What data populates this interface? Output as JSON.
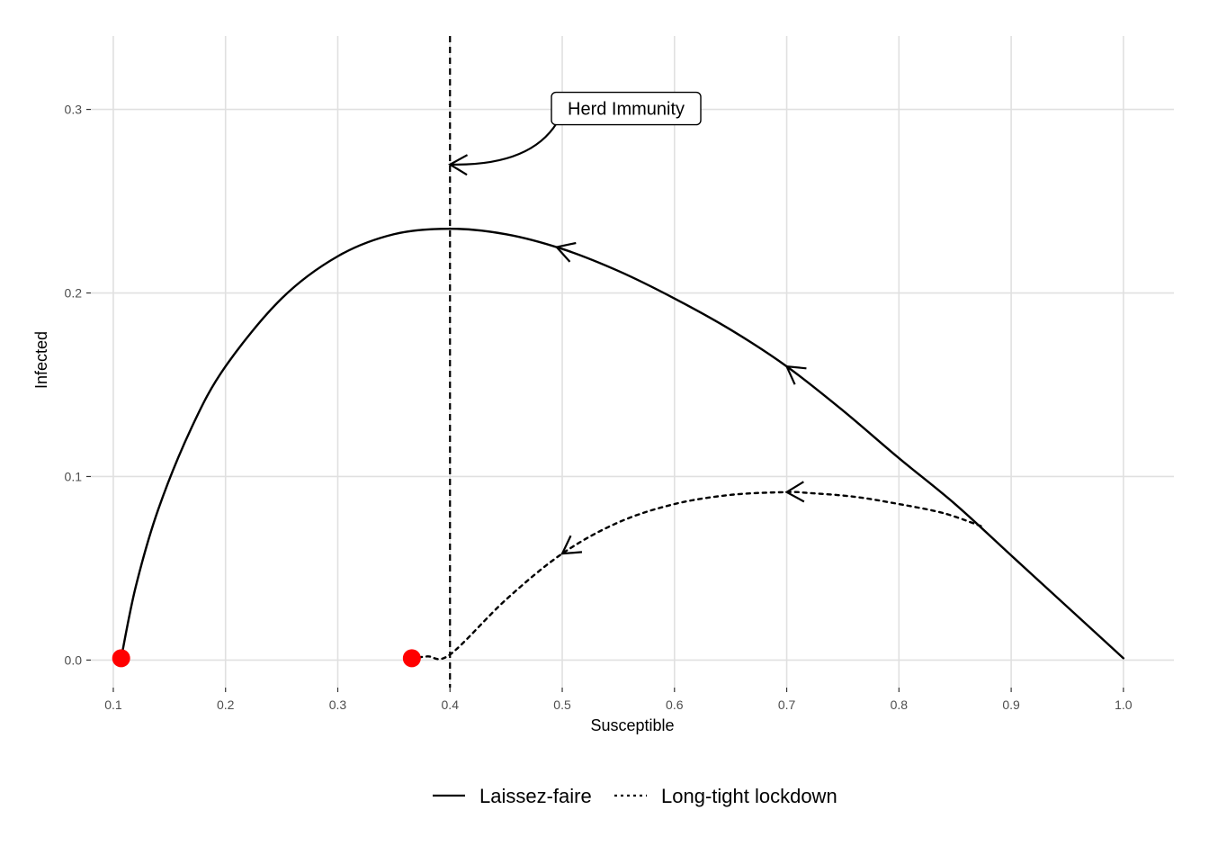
{
  "chart_data": {
    "type": "line",
    "title": "",
    "xlabel": "Susceptible",
    "ylabel": "Infected",
    "xlim": [
      0.08,
      1.045
    ],
    "ylim": [
      -0.015,
      0.34
    ],
    "x_ticks": [
      0.1,
      0.2,
      0.3,
      0.4,
      0.5,
      0.6,
      0.7,
      0.8,
      0.9,
      1.0
    ],
    "x_tick_labels": [
      "0.1",
      "0.2",
      "0.3",
      "0.4",
      "0.5",
      "0.6",
      "0.7",
      "0.8",
      "0.9",
      "1.0"
    ],
    "y_ticks": [
      0.0,
      0.1,
      0.2,
      0.3
    ],
    "y_tick_labels": [
      "0.0",
      "0.1",
      "0.2",
      "0.3"
    ],
    "grid": true,
    "legend_position": "bottom",
    "series": [
      {
        "name": "Laissez-faire",
        "line_style": "solid",
        "color": "#000000",
        "x": [
          1.0,
          0.95,
          0.9,
          0.85,
          0.8,
          0.75,
          0.7,
          0.65,
          0.6,
          0.55,
          0.5,
          0.45,
          0.4,
          0.35,
          0.3,
          0.25,
          0.2,
          0.17,
          0.14,
          0.12,
          0.107
        ],
        "y": [
          0.001,
          0.029,
          0.057,
          0.085,
          0.11,
          0.136,
          0.16,
          0.18,
          0.197,
          0.212,
          0.224,
          0.232,
          0.235,
          0.232,
          0.22,
          0.197,
          0.16,
          0.127,
          0.082,
          0.04,
          0.001
        ],
        "arrows": [
          {
            "x": 0.7,
            "y": 0.16
          },
          {
            "x": 0.495,
            "y": 0.225
          }
        ],
        "end_point": {
          "x": 0.107,
          "y": 0.001
        }
      },
      {
        "name": "Long-tight lockdown",
        "line_style": "dotted",
        "color": "#000000",
        "x": [
          0.873,
          0.84,
          0.8,
          0.76,
          0.72,
          0.7,
          0.65,
          0.6,
          0.55,
          0.5,
          0.45,
          0.4,
          0.38,
          0.366
        ],
        "y": [
          0.073,
          0.08,
          0.085,
          0.089,
          0.091,
          0.0915,
          0.09,
          0.085,
          0.075,
          0.058,
          0.033,
          0.003,
          0.002,
          0.001
        ],
        "arrows": [
          {
            "x": 0.7,
            "y": 0.0915
          },
          {
            "x": 0.5,
            "y": 0.058
          }
        ],
        "end_point": {
          "x": 0.366,
          "y": 0.001
        }
      }
    ],
    "reference_lines": [
      {
        "orientation": "vertical",
        "x": 0.4,
        "line_style": "dashed",
        "color": "#000000"
      }
    ],
    "annotations": [
      {
        "text": "Herd Immunity",
        "x": 0.5,
        "y": 0.3,
        "arrow_to": {
          "x": 0.4,
          "y": 0.27
        }
      }
    ],
    "end_point_color": "#ff0000",
    "grid_color": "#e0e0e0"
  }
}
